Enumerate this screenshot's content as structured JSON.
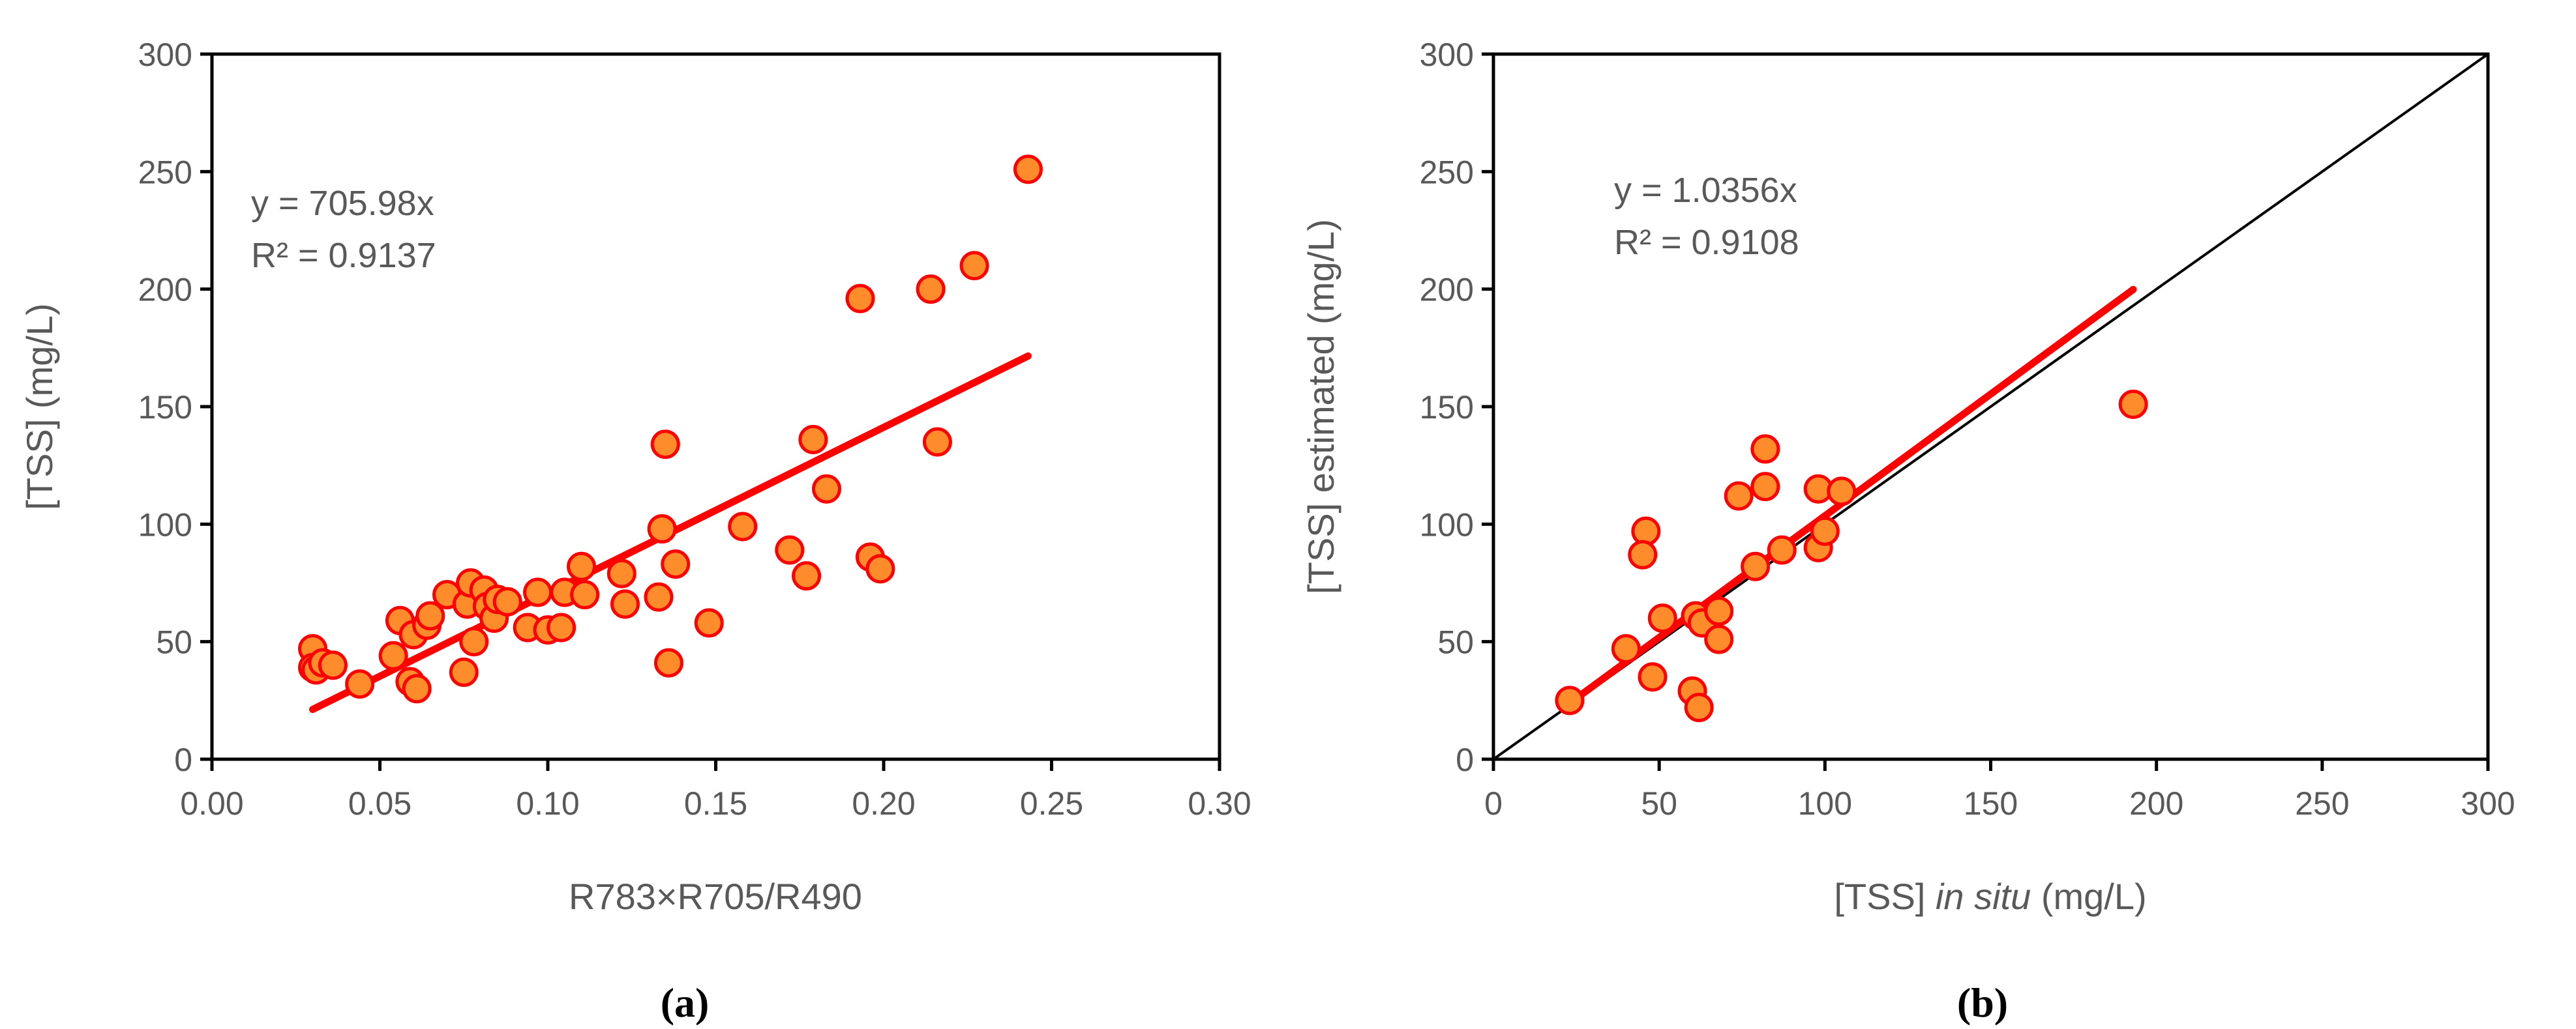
{
  "colors": {
    "marker_fill": "#FF8C2A",
    "marker_edge": "#FF0000",
    "trendline": "#FF0000",
    "one_to_one": "#000000",
    "text": "#595959"
  },
  "chart_data": [
    {
      "type": "scatter",
      "panel_label": "(a)",
      "xlabel": "R783×R705/R490",
      "ylabel": "[TSS] (mg/L)",
      "xlim": [
        0,
        0.3
      ],
      "ylim": [
        0,
        300
      ],
      "xticks": [
        "0.00",
        "0.05",
        "0.10",
        "0.15",
        "0.20",
        "0.25",
        "0.30"
      ],
      "yticks": [
        "0",
        "50",
        "100",
        "150",
        "200",
        "250",
        "300"
      ],
      "grid": false,
      "equation": "y = 705.98x",
      "r2": "R² = 0.9137",
      "trendline": {
        "slope": 705.98,
        "x_range": [
          0.03,
          0.243
        ]
      },
      "points": [
        [
          0.03,
          47
        ],
        [
          0.03,
          39
        ],
        [
          0.031,
          38
        ],
        [
          0.033,
          41
        ],
        [
          0.036,
          40
        ],
        [
          0.044,
          32
        ],
        [
          0.054,
          44
        ],
        [
          0.056,
          59
        ],
        [
          0.059,
          33
        ],
        [
          0.061,
          30
        ],
        [
          0.06,
          53
        ],
        [
          0.064,
          57
        ],
        [
          0.065,
          61
        ],
        [
          0.07,
          70
        ],
        [
          0.075,
          37
        ],
        [
          0.076,
          66
        ],
        [
          0.077,
          75
        ],
        [
          0.078,
          50
        ],
        [
          0.081,
          72
        ],
        [
          0.082,
          65
        ],
        [
          0.084,
          60
        ],
        [
          0.085,
          68
        ],
        [
          0.088,
          67
        ],
        [
          0.094,
          56
        ],
        [
          0.097,
          71
        ],
        [
          0.1,
          55
        ],
        [
          0.104,
          56
        ],
        [
          0.105,
          71
        ],
        [
          0.11,
          82
        ],
        [
          0.111,
          70
        ],
        [
          0.122,
          79
        ],
        [
          0.123,
          66
        ],
        [
          0.133,
          69
        ],
        [
          0.134,
          98
        ],
        [
          0.135,
          134
        ],
        [
          0.136,
          41
        ],
        [
          0.138,
          83
        ],
        [
          0.148,
          58
        ],
        [
          0.158,
          99
        ],
        [
          0.172,
          89
        ],
        [
          0.177,
          78
        ],
        [
          0.179,
          136
        ],
        [
          0.183,
          115
        ],
        [
          0.193,
          196
        ],
        [
          0.196,
          86
        ],
        [
          0.199,
          81
        ],
        [
          0.214,
          200
        ],
        [
          0.216,
          135
        ],
        [
          0.227,
          210
        ],
        [
          0.243,
          251
        ]
      ]
    },
    {
      "type": "scatter",
      "panel_label": "(b)",
      "xlabel_pre": "[TSS] ",
      "xlabel_italic": "in situ",
      "xlabel_post": " (mg/L)",
      "ylabel": "[TSS] estimated (mg/L)",
      "xlim": [
        0,
        300
      ],
      "ylim": [
        0,
        300
      ],
      "xticks": [
        "0",
        "50",
        "100",
        "150",
        "200",
        "250",
        "300"
      ],
      "yticks": [
        "0",
        "50",
        "100",
        "150",
        "200",
        "250",
        "300"
      ],
      "grid": false,
      "equation": "y = 1.0356x",
      "r2": "R² = 0.9108",
      "trendline": {
        "slope": 1.0356,
        "x_range": [
          23,
          193
        ]
      },
      "one_to_one_line": true,
      "points": [
        [
          23,
          25
        ],
        [
          40,
          47
        ],
        [
          46,
          97
        ],
        [
          45,
          87
        ],
        [
          48,
          35
        ],
        [
          51,
          60
        ],
        [
          60,
          29
        ],
        [
          61,
          61
        ],
        [
          62,
          22
        ],
        [
          63,
          58
        ],
        [
          68,
          51
        ],
        [
          68,
          63
        ],
        [
          74,
          112
        ],
        [
          79,
          82
        ],
        [
          82,
          116
        ],
        [
          82,
          132
        ],
        [
          87,
          89
        ],
        [
          98,
          90
        ],
        [
          98,
          115
        ],
        [
          100,
          97
        ],
        [
          105,
          114
        ],
        [
          193,
          151
        ]
      ]
    }
  ]
}
